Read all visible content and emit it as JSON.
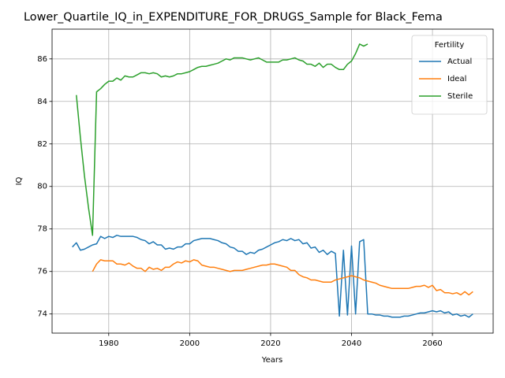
{
  "chart_data": {
    "type": "line",
    "title": "Lower_Quartile_IQ_in_EXPENDITURE_FOR_DRUGS_Sample for Black_Fema",
    "x_label": "Years",
    "y_label": "IQ",
    "legend_title": "Fertility",
    "legend": "upper right",
    "grid": true,
    "xlim": [
      1966,
      2075
    ],
    "ylim": [
      73.1,
      87.4
    ],
    "xticks": [
      1980,
      2000,
      2020,
      2040,
      2060
    ],
    "yticks": [
      74,
      76,
      78,
      80,
      82,
      84,
      86
    ],
    "x": [
      1971,
      1972,
      1973,
      1974,
      1975,
      1976,
      1977,
      1978,
      1979,
      1980,
      1981,
      1982,
      1983,
      1984,
      1985,
      1986,
      1987,
      1988,
      1989,
      1990,
      1991,
      1992,
      1993,
      1994,
      1995,
      1996,
      1997,
      1998,
      1999,
      2000,
      2001,
      2002,
      2003,
      2004,
      2005,
      2006,
      2007,
      2008,
      2009,
      2010,
      2011,
      2012,
      2013,
      2014,
      2015,
      2016,
      2017,
      2018,
      2019,
      2020,
      2021,
      2022,
      2023,
      2024,
      2025,
      2026,
      2027,
      2028,
      2029,
      2030,
      2031,
      2032,
      2033,
      2034,
      2035,
      2036,
      2037,
      2038,
      2039,
      2040,
      2041,
      2042,
      2043,
      2044,
      2045,
      2046,
      2047,
      2048,
      2049,
      2050,
      2051,
      2052,
      2053,
      2054,
      2055,
      2056,
      2057,
      2058,
      2059,
      2060,
      2061,
      2062,
      2063,
      2064,
      2065,
      2066,
      2067,
      2068,
      2069,
      2070
    ],
    "series": [
      {
        "name": "Actual",
        "color": "#1f77b4",
        "values": [
          77.15,
          77.35,
          77.0,
          77.05,
          77.15,
          77.25,
          77.3,
          77.65,
          77.55,
          77.65,
          77.6,
          77.7,
          77.65,
          77.65,
          77.65,
          77.65,
          77.6,
          77.5,
          77.45,
          77.3,
          77.4,
          77.25,
          77.25,
          77.05,
          77.1,
          77.05,
          77.15,
          77.15,
          77.3,
          77.3,
          77.45,
          77.5,
          77.55,
          77.55,
          77.55,
          77.5,
          77.45,
          77.35,
          77.3,
          77.15,
          77.1,
          76.95,
          76.95,
          76.8,
          76.9,
          76.85,
          77.0,
          77.05,
          77.15,
          77.25,
          77.35,
          77.4,
          77.5,
          77.45,
          77.55,
          77.45,
          77.5,
          77.3,
          77.35,
          77.1,
          77.15,
          76.9,
          77.0,
          76.8,
          76.95,
          76.85,
          73.9,
          77.0,
          73.95,
          77.2,
          74.0,
          77.4,
          77.5,
          74.0,
          74.0,
          73.95,
          73.95,
          73.9,
          73.9,
          73.85,
          73.85,
          73.85,
          73.9,
          73.9,
          73.95,
          74.0,
          74.05,
          74.05,
          74.1,
          74.15,
          74.1,
          74.15,
          74.05,
          74.1,
          73.95,
          74.0,
          73.9,
          73.95,
          73.85,
          74.0
        ]
      },
      {
        "name": "Ideal",
        "color": "#ff7f0e",
        "values": [
          null,
          null,
          null,
          null,
          null,
          76.0,
          76.35,
          76.55,
          76.5,
          76.5,
          76.5,
          76.35,
          76.35,
          76.3,
          76.4,
          76.25,
          76.15,
          76.15,
          76.0,
          76.2,
          76.1,
          76.15,
          76.05,
          76.2,
          76.2,
          76.35,
          76.45,
          76.4,
          76.5,
          76.45,
          76.55,
          76.5,
          76.3,
          76.25,
          76.2,
          76.2,
          76.15,
          76.1,
          76.05,
          76.0,
          76.05,
          76.05,
          76.05,
          76.1,
          76.15,
          76.2,
          76.25,
          76.3,
          76.3,
          76.35,
          76.35,
          76.3,
          76.25,
          76.2,
          76.05,
          76.05,
          75.85,
          75.75,
          75.7,
          75.6,
          75.6,
          75.55,
          75.5,
          75.5,
          75.5,
          75.6,
          75.65,
          75.7,
          75.75,
          75.8,
          75.75,
          75.7,
          75.6,
          75.55,
          75.5,
          75.45,
          75.35,
          75.3,
          75.25,
          75.2,
          75.2,
          75.2,
          75.2,
          75.2,
          75.25,
          75.3,
          75.3,
          75.35,
          75.25,
          75.35,
          75.1,
          75.15,
          75.0,
          75.0,
          74.95,
          75.0,
          74.9,
          75.05,
          74.9,
          75.05
        ]
      },
      {
        "name": "Sterile",
        "color": "#2ca02c",
        "values": [
          null,
          84.3,
          82.3,
          80.5,
          79.0,
          77.7,
          84.45,
          84.6,
          84.8,
          84.95,
          84.95,
          85.1,
          85.0,
          85.2,
          85.15,
          85.15,
          85.25,
          85.35,
          85.35,
          85.3,
          85.35,
          85.3,
          85.15,
          85.2,
          85.15,
          85.2,
          85.3,
          85.3,
          85.35,
          85.4,
          85.5,
          85.6,
          85.65,
          85.65,
          85.7,
          85.75,
          85.8,
          85.9,
          86.0,
          85.95,
          86.05,
          86.05,
          86.05,
          86.0,
          85.95,
          86.0,
          86.05,
          85.95,
          85.85,
          85.85,
          85.85,
          85.85,
          85.95,
          85.95,
          86.0,
          86.05,
          85.95,
          85.9,
          85.75,
          85.75,
          85.65,
          85.8,
          85.6,
          85.75,
          85.75,
          85.6,
          85.5,
          85.5,
          85.75,
          85.9,
          86.25,
          86.7,
          86.6,
          86.7,
          null,
          null,
          null,
          null,
          null,
          null,
          null,
          null,
          null,
          null,
          null,
          null,
          null,
          null,
          null,
          null,
          null,
          null,
          null,
          null,
          null,
          null,
          null,
          null,
          null,
          null
        ]
      }
    ]
  }
}
